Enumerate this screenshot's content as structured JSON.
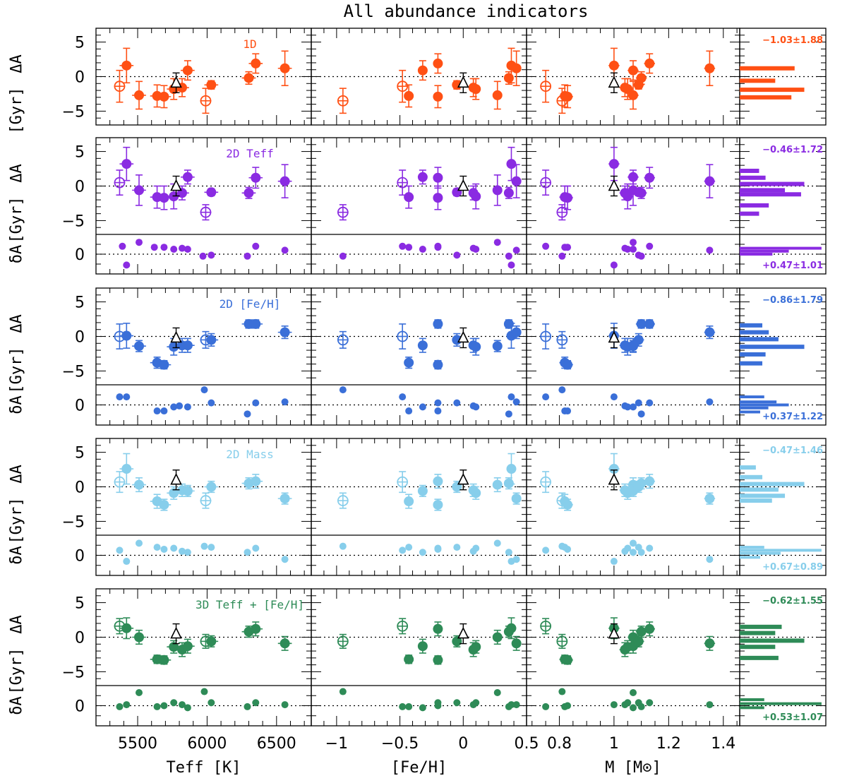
{
  "chart_data": {
    "type": "scatter",
    "title": "All abundance indicators",
    "x_axes": [
      {
        "label": "Teff [K]",
        "range": [
          5200,
          6750
        ],
        "ticks": [
          5500,
          6000,
          6500
        ],
        "tick_labels": [
          "5500",
          "6000",
          "6500"
        ]
      },
      {
        "label": "[Fe/H]",
        "range": [
          -1.2,
          0.5
        ],
        "ticks": [
          -1,
          -0.5,
          0,
          0.5
        ],
        "tick_labels": [
          "−1",
          "−0.5",
          "0",
          "0.5"
        ]
      },
      {
        "label": "M [M⊙]",
        "range": [
          0.68,
          1.46
        ],
        "ticks": [
          0.8,
          1,
          1.2,
          1.4
        ],
        "tick_labels": [
          "0.8",
          "1",
          "1.2",
          "1.4"
        ]
      }
    ],
    "ylabels": {
      "delta_age": "ΔA",
      "gyr": "[Gyr]",
      "small_delta": "δA"
    },
    "y_ranges": {
      "main": [
        -7,
        7
      ],
      "resid": [
        -2,
        2
      ]
    },
    "y_ticks": {
      "main": [
        "5",
        "0",
        "−5"
      ],
      "resid": [
        "0"
      ]
    },
    "open_stars": [
      {
        "teff": 5370,
        "feh": -0.48,
        "mass": 0.75
      },
      {
        "teff": 5990,
        "feh": -0.95,
        "mass": 0.81
      }
    ],
    "stars": [
      {
        "teff": 5420,
        "feh": 0.38,
        "mass": 1.0
      },
      {
        "teff": 5510,
        "feh": 0.27,
        "mass": 1.07
      },
      {
        "teff": 5640,
        "feh": -0.43,
        "mass": 0.82
      },
      {
        "teff": 5690,
        "feh": -0.2,
        "mass": 0.83
      },
      {
        "teff": 5760,
        "feh": 0.1,
        "mass": 1.05
      },
      {
        "teff": 5820,
        "feh": 0.08,
        "mass": 1.04
      },
      {
        "teff": 5860,
        "feh": -0.32,
        "mass": 1.07
      },
      {
        "teff": 6030,
        "feh": -0.05,
        "mass": 1.09
      },
      {
        "teff": 6300,
        "feh": 0.36,
        "mass": 1.1
      },
      {
        "teff": 6350,
        "feh": -0.2,
        "mass": 1.13
      },
      {
        "teff": 6560,
        "feh": 0.42,
        "mass": 1.35
      }
    ],
    "sun": {
      "teff": 5777,
      "feh": 0.0,
      "mass": 1.0
    },
    "panels": [
      {
        "name": "1D",
        "color": "#ff5014",
        "stat_main": "−1.03±1.88",
        "stat_resid": null,
        "open_values": [
          -1.4,
          -3.5
        ],
        "open_errors": [
          2.3,
          1.8
        ],
        "values": [
          1.6,
          -2.7,
          -2.8,
          -2.9,
          -1.8,
          -1.6,
          0.9,
          -1.2,
          -0.2,
          1.9,
          1.2
        ],
        "errors": [
          2.5,
          2.0,
          1.6,
          1.6,
          1.5,
          1.3,
          1.4,
          0.6,
          0.9,
          1.4,
          2.5
        ],
        "resid": null,
        "sun_value": -0.9,
        "hist": [
          {
            "y": 1.2,
            "w": 0.85
          },
          {
            "y": -0.6,
            "w": 0.55
          },
          {
            "y": -1.9,
            "w": 1.0
          },
          {
            "y": -3.0,
            "w": 0.8
          }
        ]
      },
      {
        "name": "2D Teff",
        "color": "#8a2be2",
        "stat_main": "−0.46±1.72",
        "stat_resid": "+0.47±1.01",
        "open_values": [
          0.5,
          -3.8
        ],
        "open_errors": [
          1.8,
          1.1
        ],
        "values": [
          3.2,
          -0.6,
          -1.6,
          -1.7,
          -1.5,
          -1.0,
          1.3,
          -0.9,
          -1.0,
          1.2,
          0.7
        ],
        "errors": [
          2.4,
          2.2,
          1.6,
          1.7,
          1.8,
          1.0,
          1.0,
          0.5,
          0.8,
          1.5,
          2.4
        ],
        "resid": [
          -1.1,
          1.2,
          0.7,
          0.7,
          0.5,
          0.6,
          0.5,
          0.4,
          0.3,
          0.8,
          0.4
        ],
        "open_resid": null,
        "resid_points": [
          {
            "teff": 5390,
            "v": 0.8
          },
          {
            "teff": 5420,
            "v": -1.1
          },
          {
            "teff": 5510,
            "v": 1.2
          },
          {
            "teff": 5620,
            "v": 0.7
          },
          {
            "teff": 5690,
            "v": 0.7
          },
          {
            "teff": 5760,
            "v": 0.5
          },
          {
            "teff": 5820,
            "v": 0.6
          },
          {
            "teff": 5860,
            "v": 0.5
          },
          {
            "teff": 5970,
            "v": -0.2
          },
          {
            "teff": 6030,
            "v": -0.1
          },
          {
            "teff": 6290,
            "v": -0.2
          },
          {
            "teff": 6350,
            "v": 0.8
          },
          {
            "teff": 6560,
            "v": 0.4
          }
        ],
        "sun_value": 0.0,
        "hist": [
          {
            "y": 2.2,
            "w": 0.3
          },
          {
            "y": 1.2,
            "w": 0.4
          },
          {
            "y": 0.3,
            "w": 1.0
          },
          {
            "y": -0.6,
            "w": 0.7
          },
          {
            "y": -1.2,
            "w": 0.95
          },
          {
            "y": -2.8,
            "w": 0.45
          },
          {
            "y": -4.0,
            "w": 0.3
          }
        ],
        "hist_resid": [
          {
            "y": 0.6,
            "w": 1.0
          },
          {
            "y": 0.3,
            "w": 0.6
          },
          {
            "y": 0.0,
            "w": 0.4
          }
        ]
      },
      {
        "name": "2D [Fe/H]",
        "color": "#3a6fd8",
        "stat_main": "−0.86±1.79",
        "stat_resid": "+0.37±1.22",
        "open_values": [
          0.0,
          -0.5
        ],
        "open_errors": [
          1.8,
          1.2
        ],
        "values": [
          0.1,
          -1.4,
          -3.8,
          -4.1,
          -1.5,
          -1.3,
          -1.3,
          -0.5,
          1.8,
          1.8,
          0.6
        ],
        "errors": [
          1.8,
          0.8,
          0.8,
          0.6,
          1.2,
          1.0,
          1.0,
          0.9,
          0.6,
          0.6,
          0.9
        ],
        "resid_points": [
          {
            "teff": 5370,
            "v": 0.8
          },
          {
            "teff": 5420,
            "v": 0.8
          },
          {
            "teff": 5640,
            "v": -0.6
          },
          {
            "teff": 5690,
            "v": -0.6
          },
          {
            "teff": 5760,
            "v": -0.2
          },
          {
            "teff": 5800,
            "v": -0.1
          },
          {
            "teff": 5860,
            "v": -0.2
          },
          {
            "teff": 5980,
            "v": 1.5
          },
          {
            "teff": 6030,
            "v": 0.2
          },
          {
            "teff": 6290,
            "v": -0.9
          },
          {
            "teff": 6350,
            "v": 0.2
          },
          {
            "teff": 6560,
            "v": 0.3
          }
        ],
        "sun_value": -0.2,
        "hist": [
          {
            "y": 1.6,
            "w": 0.35
          },
          {
            "y": 0.6,
            "w": 0.45
          },
          {
            "y": -0.4,
            "w": 0.6
          },
          {
            "y": -1.5,
            "w": 1.0
          },
          {
            "y": -2.6,
            "w": 0.4
          },
          {
            "y": -3.9,
            "w": 0.35
          }
        ],
        "hist_resid": [
          {
            "y": 0.8,
            "w": 0.3
          },
          {
            "y": 0.3,
            "w": 0.45
          },
          {
            "y": 0.0,
            "w": 0.6
          },
          {
            "y": -0.3,
            "w": 0.35
          },
          {
            "y": -0.7,
            "w": 0.25
          }
        ]
      },
      {
        "name": "2D Mass",
        "color": "#87ceeb",
        "stat_main": "−0.47±1.46",
        "stat_resid": "+0.67±0.89",
        "open_values": [
          0.7,
          -2.0
        ],
        "open_errors": [
          1.5,
          1.1
        ],
        "values": [
          2.6,
          0.3,
          -2.1,
          -2.6,
          -0.9,
          -0.5,
          -0.6,
          0.0,
          0.5,
          0.8,
          -1.7
        ],
        "errors": [
          2.2,
          1.0,
          1.0,
          0.8,
          0.9,
          0.9,
          0.8,
          0.8,
          0.8,
          1.0,
          0.8
        ],
        "resid_points": [
          {
            "teff": 5370,
            "v": 0.5
          },
          {
            "teff": 5420,
            "v": -0.6
          },
          {
            "teff": 5510,
            "v": 1.2
          },
          {
            "teff": 5640,
            "v": 0.8
          },
          {
            "teff": 5690,
            "v": 0.6
          },
          {
            "teff": 5760,
            "v": 0.7
          },
          {
            "teff": 5820,
            "v": 0.4
          },
          {
            "teff": 5860,
            "v": 0.3
          },
          {
            "teff": 5980,
            "v": 0.9
          },
          {
            "teff": 6030,
            "v": 0.8
          },
          {
            "teff": 6290,
            "v": 0.3
          },
          {
            "teff": 6350,
            "v": 0.7
          },
          {
            "teff": 6560,
            "v": -0.4
          }
        ],
        "sun_value": 1.0,
        "hist": [
          {
            "y": 2.8,
            "w": 0.25
          },
          {
            "y": 1.4,
            "w": 0.35
          },
          {
            "y": 0.4,
            "w": 1.0
          },
          {
            "y": -0.4,
            "w": 0.6
          },
          {
            "y": -1.3,
            "w": 0.7
          },
          {
            "y": -2.0,
            "w": 0.5
          }
        ],
        "hist_resid": [
          {
            "y": 0.8,
            "w": 0.3
          },
          {
            "y": 0.5,
            "w": 1.0
          },
          {
            "y": 0.2,
            "w": 0.5
          },
          {
            "y": -0.2,
            "w": 0.25
          }
        ]
      },
      {
        "name": "3D Teff + [Fe/H]",
        "color": "#2e8b57",
        "stat_main": "−0.62±1.55",
        "stat_resid": "+0.53±1.07",
        "open_values": [
          1.6,
          -0.6
        ],
        "open_errors": [
          1.1,
          1.0
        ],
        "values": [
          1.3,
          0.0,
          -3.2,
          -3.3,
          -1.4,
          -1.8,
          -1.3,
          -0.6,
          0.8,
          1.2,
          -0.9
        ],
        "errors": [
          1.5,
          1.0,
          0.6,
          0.6,
          0.9,
          1.0,
          1.0,
          0.8,
          0.8,
          1.0,
          1.0
        ],
        "resid_points": [
          {
            "teff": 5370,
            "v": -0.1
          },
          {
            "teff": 5420,
            "v": 0.1
          },
          {
            "teff": 5510,
            "v": 1.3
          },
          {
            "teff": 5640,
            "v": -0.1
          },
          {
            "teff": 5690,
            "v": 0.0
          },
          {
            "teff": 5760,
            "v": 0.3
          },
          {
            "teff": 5820,
            "v": 0.1
          },
          {
            "teff": 5860,
            "v": -0.2
          },
          {
            "teff": 5980,
            "v": 1.4
          },
          {
            "teff": 6030,
            "v": 0.3
          },
          {
            "teff": 6290,
            "v": -0.1
          },
          {
            "teff": 6350,
            "v": 0.3
          },
          {
            "teff": 6560,
            "v": 0.1
          }
        ],
        "sun_value": 0.5,
        "hist": [
          {
            "y": 1.5,
            "w": 0.65
          },
          {
            "y": 0.6,
            "w": 0.55
          },
          {
            "y": -0.5,
            "w": 1.0
          },
          {
            "y": -1.4,
            "w": 0.55
          },
          {
            "y": -3.0,
            "w": 0.6
          }
        ],
        "hist_resid": [
          {
            "y": 0.6,
            "w": 0.3
          },
          {
            "y": 0.2,
            "w": 1.0
          },
          {
            "y": -0.2,
            "w": 0.3
          }
        ]
      }
    ]
  }
}
